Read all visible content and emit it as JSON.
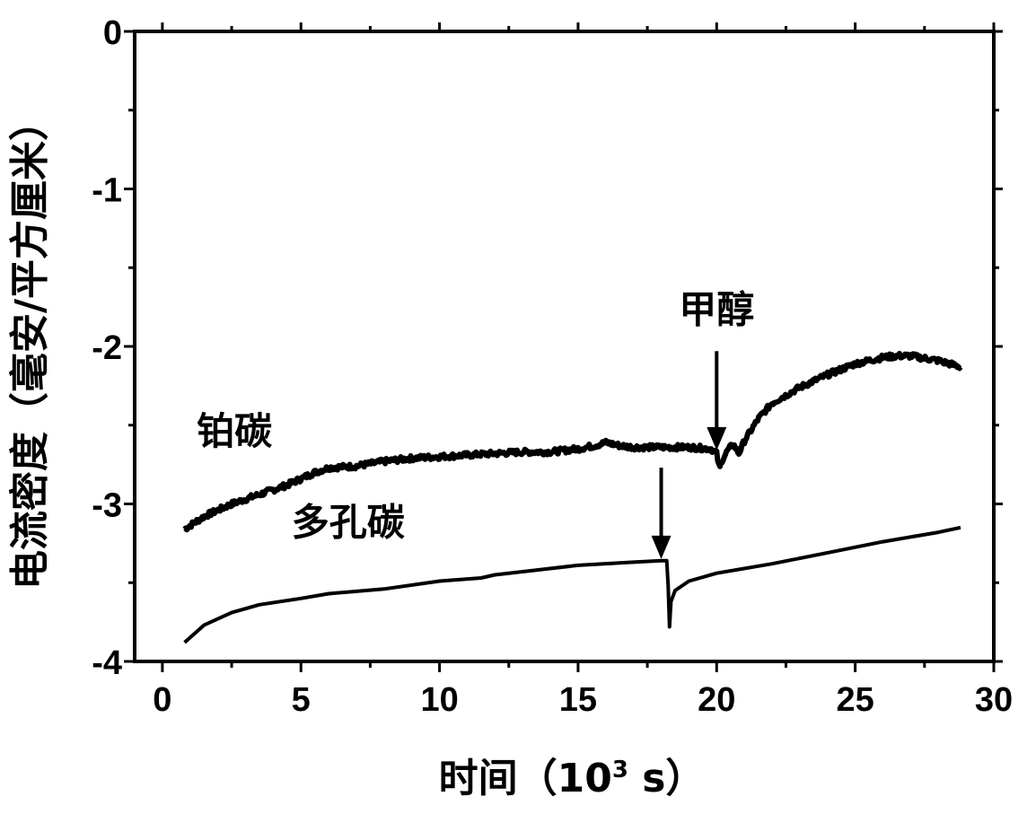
{
  "chart_data": {
    "type": "line",
    "title": "",
    "xlabel": "时间（10³ s）",
    "xlabel_parts": {
      "main": "时间（10",
      "sup": "3",
      "tail": " s）"
    },
    "ylabel": "电流密度（毫安/平方厘米）",
    "xlim": [
      -1,
      30
    ],
    "ylim": [
      -4,
      0
    ],
    "xticks": [
      0,
      5,
      10,
      15,
      20,
      25,
      30
    ],
    "yticks": [
      0,
      -1,
      -2,
      -3,
      -4
    ],
    "xtick_labels": [
      "0",
      "5",
      "10",
      "15",
      "20",
      "25",
      "30"
    ],
    "ytick_labels": [
      "0",
      "-1",
      "-2",
      "-3",
      "-4"
    ],
    "grid": false,
    "series": [
      {
        "name": "铂碳",
        "color": "#000000",
        "noisy": true,
        "points": [
          [
            0.8,
            -3.16
          ],
          [
            1.5,
            -3.08
          ],
          [
            2.5,
            -3.0
          ],
          [
            3.5,
            -2.94
          ],
          [
            4.5,
            -2.88
          ],
          [
            5.5,
            -2.8
          ],
          [
            6.0,
            -2.77
          ],
          [
            7.0,
            -2.76
          ],
          [
            8.0,
            -2.73
          ],
          [
            9.0,
            -2.71
          ],
          [
            10.0,
            -2.7
          ],
          [
            11.0,
            -2.69
          ],
          [
            12.0,
            -2.68
          ],
          [
            13.0,
            -2.67
          ],
          [
            14.0,
            -2.67
          ],
          [
            15.0,
            -2.65
          ],
          [
            15.6,
            -2.63
          ],
          [
            16.0,
            -2.61
          ],
          [
            16.5,
            -2.63
          ],
          [
            17.0,
            -2.64
          ],
          [
            18.0,
            -2.64
          ],
          [
            19.0,
            -2.64
          ],
          [
            19.8,
            -2.65
          ],
          [
            20.0,
            -2.68
          ],
          [
            20.1,
            -2.78
          ],
          [
            20.2,
            -2.72
          ],
          [
            20.4,
            -2.66
          ],
          [
            20.6,
            -2.62
          ],
          [
            20.8,
            -2.68
          ],
          [
            21.0,
            -2.6
          ],
          [
            21.5,
            -2.46
          ],
          [
            22.0,
            -2.36
          ],
          [
            23.0,
            -2.26
          ],
          [
            24.0,
            -2.18
          ],
          [
            25.0,
            -2.11
          ],
          [
            26.0,
            -2.07
          ],
          [
            26.5,
            -2.06
          ],
          [
            27.0,
            -2.06
          ],
          [
            28.0,
            -2.09
          ],
          [
            28.8,
            -2.13
          ]
        ]
      },
      {
        "name": "多孔碳",
        "color": "#000000",
        "noisy": false,
        "points": [
          [
            0.8,
            -3.88
          ],
          [
            1.5,
            -3.77
          ],
          [
            2.5,
            -3.69
          ],
          [
            3.5,
            -3.64
          ],
          [
            5.0,
            -3.6
          ],
          [
            6.0,
            -3.57
          ],
          [
            8.0,
            -3.54
          ],
          [
            10.0,
            -3.49
          ],
          [
            11.5,
            -3.47
          ],
          [
            12.0,
            -3.45
          ],
          [
            13.0,
            -3.43
          ],
          [
            15.0,
            -3.39
          ],
          [
            17.0,
            -3.37
          ],
          [
            18.0,
            -3.36
          ],
          [
            18.2,
            -3.36
          ],
          [
            18.25,
            -3.52
          ],
          [
            18.3,
            -3.78
          ],
          [
            18.35,
            -3.62
          ],
          [
            18.5,
            -3.55
          ],
          [
            19.0,
            -3.49
          ],
          [
            20.0,
            -3.44
          ],
          [
            22.0,
            -3.38
          ],
          [
            24.0,
            -3.31
          ],
          [
            26.0,
            -3.24
          ],
          [
            28.0,
            -3.18
          ],
          [
            28.8,
            -3.15
          ]
        ]
      }
    ],
    "annotations": [
      {
        "text": "铂碳",
        "x": 2.6,
        "y": -2.62
      },
      {
        "text": "多孔碳",
        "x": 6.7,
        "y": -3.2
      },
      {
        "text": "甲醇",
        "x": 20.0,
        "y": -1.85
      }
    ],
    "arrows": [
      {
        "x": 20.0,
        "y_from": -2.03,
        "y_to": -2.66
      },
      {
        "x": 18.0,
        "y_from": -2.77,
        "y_to": -3.35
      }
    ]
  }
}
